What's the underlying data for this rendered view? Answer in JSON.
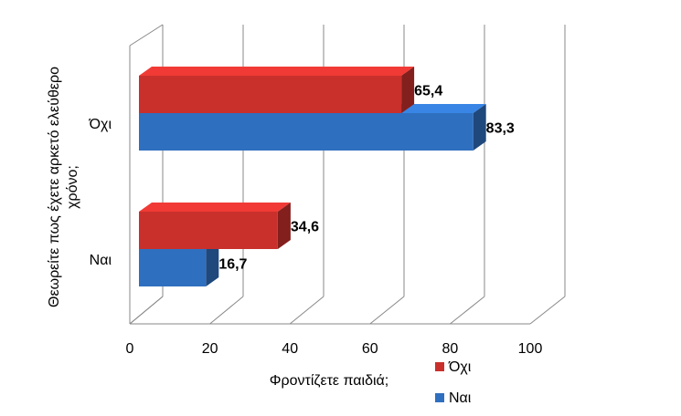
{
  "chart_data": {
    "type": "bar3d-horizontal",
    "x_label": "Φροντίζετε παιδιά;",
    "y_label": "Θεωρείτε πως έχετε αρκετό ελεύθερο χρόνο;",
    "categories": [
      "Όχι",
      "Ναι"
    ],
    "series": [
      {
        "name": "Όχι",
        "color": "#c9302c",
        "values": [
          65.4,
          34.6
        ],
        "value_labels": [
          "65,4",
          "34,6"
        ]
      },
      {
        "name": "Ναι",
        "color": "#2f6fbf",
        "values": [
          83.3,
          16.7
        ],
        "value_labels": [
          "83,3",
          "16,7"
        ]
      }
    ],
    "xlim": [
      0,
      100
    ],
    "xticks": [
      0,
      20,
      40,
      60,
      80,
      100
    ],
    "grid": true,
    "legend": "bottom-right"
  }
}
